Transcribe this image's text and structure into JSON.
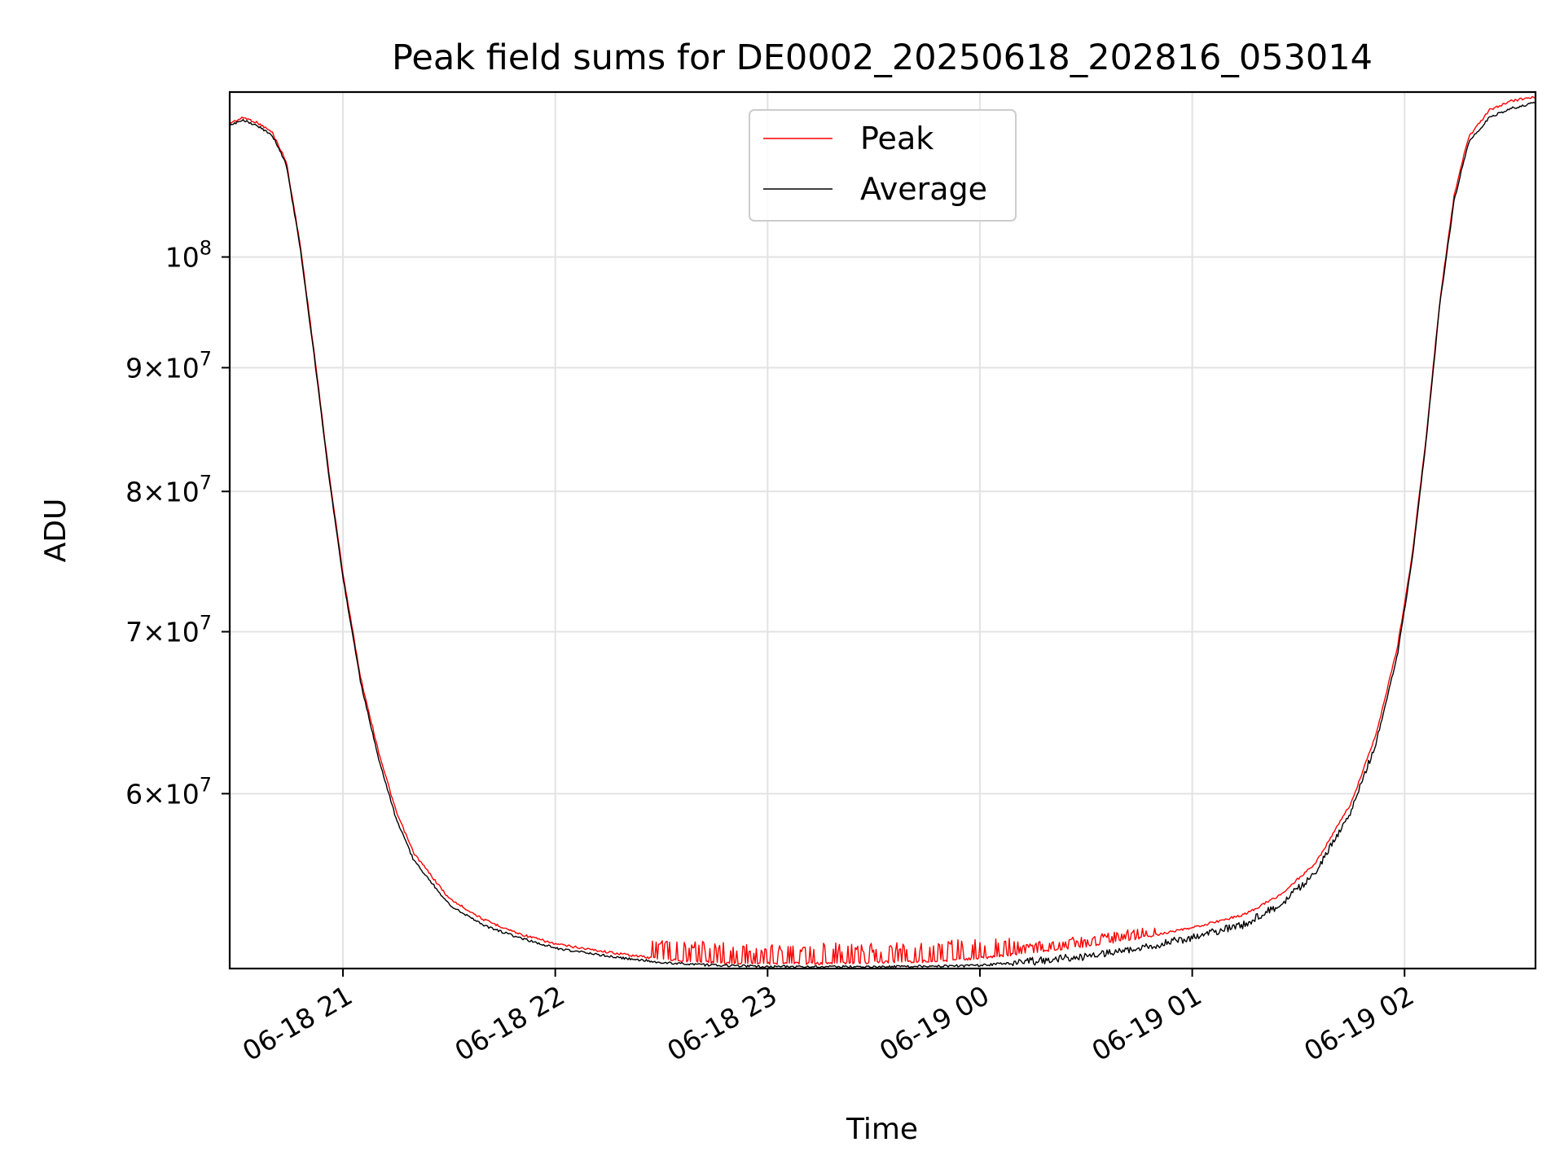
{
  "chart_data": {
    "type": "line",
    "title": "Peak field sums for DE0002_20250618_202816_053014",
    "xlabel": "Time",
    "ylabel": "ADU",
    "x_axis_type": "datetime",
    "y_scale": "log",
    "grid": true,
    "legend_position": "top-center",
    "xlim": [
      "2025-06-18 20:28",
      "2025-06-19 02:37"
    ],
    "ylim": [
      50800000,
      117000000
    ],
    "x_ticks": [
      {
        "value": "2025-06-18 21:00",
        "label": "06-18 21"
      },
      {
        "value": "2025-06-18 22:00",
        "label": "06-18 22"
      },
      {
        "value": "2025-06-18 23:00",
        "label": "06-18 23"
      },
      {
        "value": "2025-06-19 00:00",
        "label": "06-19 00"
      },
      {
        "value": "2025-06-19 01:00",
        "label": "06-19 01"
      },
      {
        "value": "2025-06-19 02:00",
        "label": "06-19 02"
      }
    ],
    "y_ticks": [
      {
        "value": 60000000,
        "mantissa": "6",
        "exponent": "7"
      },
      {
        "value": 70000000,
        "mantissa": "7",
        "exponent": "7"
      },
      {
        "value": 80000000,
        "mantissa": "8",
        "exponent": "7"
      },
      {
        "value": 90000000,
        "mantissa": "9",
        "exponent": "7"
      },
      {
        "value": 100000000,
        "mantissa": "",
        "exponent": "8"
      }
    ],
    "series": [
      {
        "name": "Peak",
        "color": "#ff0000",
        "points": [
          [
            "2025-06-18 20:28",
            113600000
          ],
          [
            "2025-06-18 20:32",
            114200000
          ],
          [
            "2025-06-18 20:36",
            113600000
          ],
          [
            "2025-06-18 20:40",
            112600000
          ],
          [
            "2025-06-18 20:44",
            109500000
          ],
          [
            "2025-06-18 20:48",
            101000000
          ],
          [
            "2025-06-18 20:52",
            91000000
          ],
          [
            "2025-06-18 20:56",
            81500000
          ],
          [
            "2025-06-18 21:00",
            74000000
          ],
          [
            "2025-06-18 21:05",
            67000000
          ],
          [
            "2025-06-18 21:10",
            62500000
          ],
          [
            "2025-06-18 21:15",
            59000000
          ],
          [
            "2025-06-18 21:20",
            56700000
          ],
          [
            "2025-06-18 21:30",
            54300000
          ],
          [
            "2025-06-18 21:40",
            53200000
          ],
          [
            "2025-06-18 21:50",
            52500000
          ],
          [
            "2025-06-18 22:00",
            52000000
          ],
          [
            "2025-06-18 22:15",
            51600000
          ],
          [
            "2025-06-18 22:30",
            51250000
          ],
          [
            "2025-06-18 22:45",
            51100000
          ],
          [
            "2025-06-18 23:00",
            51050000
          ],
          [
            "2025-06-18 23:15",
            51050000
          ],
          [
            "2025-06-18 23:30",
            51100000
          ],
          [
            "2025-06-18 23:45",
            51150000
          ],
          [
            "2025-06-19 00:00",
            51300000
          ],
          [
            "2025-06-19 00:15",
            51600000
          ],
          [
            "2025-06-19 00:30",
            51900000
          ],
          [
            "2025-06-19 00:45",
            52300000
          ],
          [
            "2025-06-19 01:00",
            52800000
          ],
          [
            "2025-06-19 01:15",
            53500000
          ],
          [
            "2025-06-19 01:25",
            54500000
          ],
          [
            "2025-06-19 01:35",
            56200000
          ],
          [
            "2025-06-19 01:45",
            59500000
          ],
          [
            "2025-06-19 01:52",
            63500000
          ],
          [
            "2025-06-19 01:58",
            69000000
          ],
          [
            "2025-06-19 02:02",
            75000000
          ],
          [
            "2025-06-19 02:06",
            84000000
          ],
          [
            "2025-06-19 02:10",
            96000000
          ],
          [
            "2025-06-19 02:14",
            106000000
          ],
          [
            "2025-06-19 02:18",
            112000000
          ],
          [
            "2025-06-19 02:24",
            115000000
          ],
          [
            "2025-06-19 02:30",
            116000000
          ],
          [
            "2025-06-19 02:37",
            116500000
          ]
        ]
      },
      {
        "name": "Average",
        "color": "#000000",
        "points": [
          [
            "2025-06-18 20:28",
            113300000
          ],
          [
            "2025-06-18 20:32",
            113900000
          ],
          [
            "2025-06-18 20:36",
            113300000
          ],
          [
            "2025-06-18 20:40",
            112300000
          ],
          [
            "2025-06-18 20:44",
            109200000
          ],
          [
            "2025-06-18 20:48",
            100700000
          ],
          [
            "2025-06-18 20:52",
            90700000
          ],
          [
            "2025-06-18 20:56",
            81200000
          ],
          [
            "2025-06-18 21:00",
            73700000
          ],
          [
            "2025-06-18 21:05",
            66700000
          ],
          [
            "2025-06-18 21:10",
            62100000
          ],
          [
            "2025-06-18 21:15",
            58600000
          ],
          [
            "2025-06-18 21:20",
            56300000
          ],
          [
            "2025-06-18 21:30",
            54000000
          ],
          [
            "2025-06-18 21:40",
            52900000
          ],
          [
            "2025-06-18 21:50",
            52300000
          ],
          [
            "2025-06-18 22:00",
            51800000
          ],
          [
            "2025-06-18 22:15",
            51400000
          ],
          [
            "2025-06-18 22:30",
            51100000
          ],
          [
            "2025-06-18 22:45",
            50950000
          ],
          [
            "2025-06-18 23:00",
            50900000
          ],
          [
            "2025-06-18 23:15",
            50880000
          ],
          [
            "2025-06-18 23:30",
            50880000
          ],
          [
            "2025-06-18 23:45",
            50900000
          ],
          [
            "2025-06-19 00:00",
            50950000
          ],
          [
            "2025-06-19 00:15",
            51150000
          ],
          [
            "2025-06-19 00:30",
            51400000
          ],
          [
            "2025-06-19 00:45",
            51800000
          ],
          [
            "2025-06-19 01:00",
            52300000
          ],
          [
            "2025-06-19 01:15",
            53000000
          ],
          [
            "2025-06-19 01:25",
            54000000
          ],
          [
            "2025-06-19 01:35",
            55700000
          ],
          [
            "2025-06-19 01:45",
            59000000
          ],
          [
            "2025-06-19 01:52",
            63000000
          ],
          [
            "2025-06-19 01:58",
            68500000
          ],
          [
            "2025-06-19 02:02",
            74700000
          ],
          [
            "2025-06-19 02:06",
            83700000
          ],
          [
            "2025-06-19 02:10",
            95700000
          ],
          [
            "2025-06-19 02:14",
            105500000
          ],
          [
            "2025-06-19 02:18",
            111500000
          ],
          [
            "2025-06-19 02:24",
            114200000
          ],
          [
            "2025-06-19 02:30",
            115200000
          ],
          [
            "2025-06-19 02:37",
            115800000
          ]
        ]
      }
    ]
  }
}
